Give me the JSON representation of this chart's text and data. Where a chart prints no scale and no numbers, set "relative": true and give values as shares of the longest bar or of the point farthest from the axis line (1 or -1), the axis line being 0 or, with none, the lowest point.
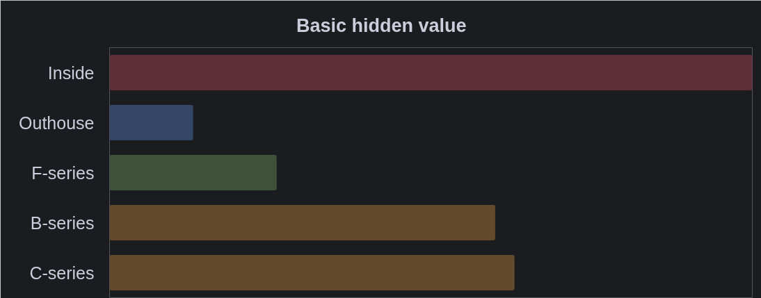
{
  "chart_data": {
    "type": "bar",
    "title": "Basic hidden value",
    "orientation": "horizontal",
    "relative": true,
    "categories": [
      "Inside",
      "Outhouse",
      "F-series",
      "B-series",
      "C-series"
    ],
    "values": [
      1,
      0.13,
      0.26,
      0.6,
      0.63
    ],
    "colors": [
      "#5e2f38",
      "#344766",
      "#3d5239",
      "#634a2d",
      "#634a2d"
    ]
  }
}
